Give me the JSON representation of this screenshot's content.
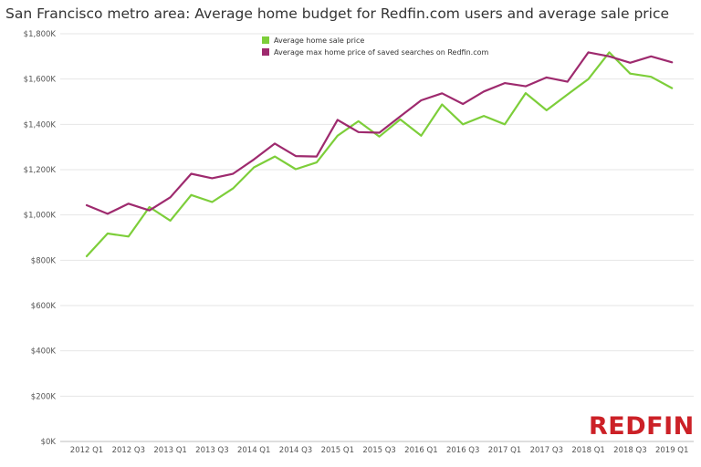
{
  "title": "San Francisco metro area: Average home budget for Redfin.com users and average sale price",
  "logo_text": "REDFIN",
  "colors": {
    "sale": "#7dce3a",
    "budget": "#9e2a6e",
    "grid": "#e6e6e6",
    "axis": "#bdbdbd",
    "brand": "#cc2127"
  },
  "chart_data": {
    "type": "line",
    "title": "San Francisco metro area: Average home budget for Redfin.com users and average sale price",
    "xlabel": "",
    "ylabel": "",
    "ylim": [
      0,
      1800000
    ],
    "y_ticks": [
      0,
      200000,
      400000,
      600000,
      800000,
      1000000,
      1200000,
      1400000,
      1600000,
      1800000
    ],
    "y_tick_labels": [
      "$0K",
      "$200K",
      "$400K",
      "$600K",
      "$800K",
      "$1,000K",
      "$1,200K",
      "$1,400K",
      "$1,600K",
      "$1,800K"
    ],
    "x": [
      "2012 Q1",
      "2012 Q2",
      "2012 Q3",
      "2012 Q4",
      "2013 Q1",
      "2013 Q2",
      "2013 Q3",
      "2013 Q4",
      "2014 Q1",
      "2014 Q2",
      "2014 Q3",
      "2014 Q4",
      "2015 Q1",
      "2015 Q2",
      "2015 Q3",
      "2015 Q4",
      "2016 Q1",
      "2016 Q2",
      "2016 Q3",
      "2016 Q4",
      "2017 Q1",
      "2017 Q2",
      "2017 Q3",
      "2017 Q4",
      "2018 Q1",
      "2018 Q2",
      "2018 Q3",
      "2018 Q4",
      "2019 Q1"
    ],
    "x_tick_labels": [
      "2012 Q1",
      "2012 Q3",
      "2013 Q1",
      "2013 Q3",
      "2014 Q1",
      "2014 Q3",
      "2015 Q1",
      "2015 Q3",
      "2016 Q1",
      "2016 Q3",
      "2017 Q1",
      "2017 Q3",
      "2018 Q1",
      "2018 Q3",
      "2019 Q1"
    ],
    "legend": "top-center",
    "grid": true,
    "series": [
      {
        "name": "Average home sale price",
        "color": "#7dce3a",
        "values": [
          818000,
          918000,
          905000,
          1035000,
          975000,
          1088000,
          1057000,
          1117000,
          1210000,
          1258000,
          1202000,
          1232000,
          1350000,
          1414000,
          1346000,
          1422000,
          1350000,
          1488000,
          1400000,
          1437000,
          1400000,
          1538000,
          1462000,
          1532000,
          1600000,
          1718000,
          1624000,
          1610000,
          1560000
        ]
      },
      {
        "name": "Average max home price of saved searches on Redfin.com",
        "color": "#9e2a6e",
        "values": [
          1043000,
          1005000,
          1050000,
          1020000,
          1078000,
          1182000,
          1162000,
          1182000,
          1245000,
          1315000,
          1260000,
          1258000,
          1420000,
          1366000,
          1363000,
          1435000,
          1506000,
          1537000,
          1490000,
          1545000,
          1582000,
          1568000,
          1607000,
          1588000,
          1718000,
          1700000,
          1672000,
          1700000,
          1674000
        ]
      }
    ]
  }
}
